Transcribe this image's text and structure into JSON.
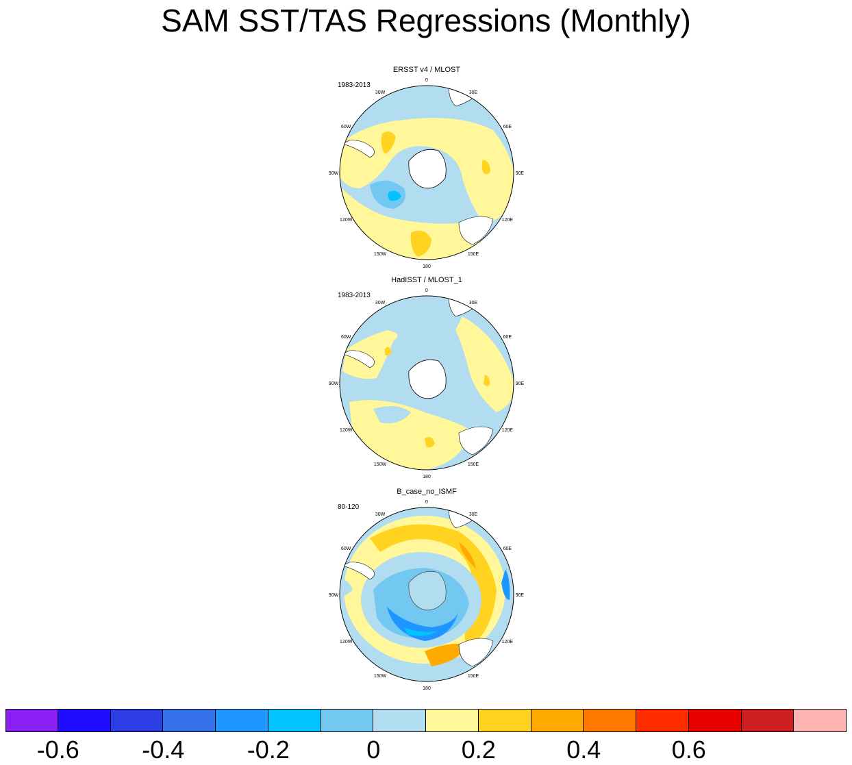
{
  "title": "SAM SST/TAS Regressions (Monthly)",
  "colors": {
    "ocean_neutral_negative": "#b2dcf0",
    "neutral_positive": "#fff799",
    "land": "#ffffff",
    "coast": "#000000"
  },
  "panels": [
    {
      "title": "ERSST v4 / MLOST",
      "period": "1983-2013",
      "lon_labels": [
        "0",
        "30E",
        "60E",
        "90E",
        "120E",
        "150E",
        "180",
        "150W",
        "120W",
        "90W",
        "60W",
        "30W"
      ]
    },
    {
      "title": "HadISST / MLOST_1",
      "period": "1983-2013",
      "lon_labels": [
        "0",
        "30E",
        "60E",
        "90E",
        "120E",
        "150E",
        "180",
        "150W",
        "120W",
        "90W",
        "60W",
        "30W"
      ]
    },
    {
      "title": "B_case_no_ISMF",
      "period": "80-120",
      "lon_labels": [
        "0",
        "30E",
        "60E",
        "90E",
        "120E",
        "150E",
        "180",
        "150W",
        "120W",
        "90W",
        "60W",
        "30W"
      ]
    }
  ],
  "colorbar": {
    "colors": [
      "#8b20f5",
      "#1e0bff",
      "#2c3ee4",
      "#3571e8",
      "#1e96ff",
      "#00c3ff",
      "#72c8f0",
      "#b2dcf0",
      "#fff799",
      "#ffd320",
      "#ffaa00",
      "#ff7800",
      "#ff2d00",
      "#e60000",
      "#cc1e1e",
      "#ffb4b4"
    ],
    "labels": [
      "-0.6",
      "-0.4",
      "-0.2",
      "0",
      "0.2",
      "0.4",
      "0.6"
    ],
    "label_values": [
      -0.6,
      -0.4,
      -0.2,
      0,
      0.2,
      0.4,
      0.6
    ]
  }
}
